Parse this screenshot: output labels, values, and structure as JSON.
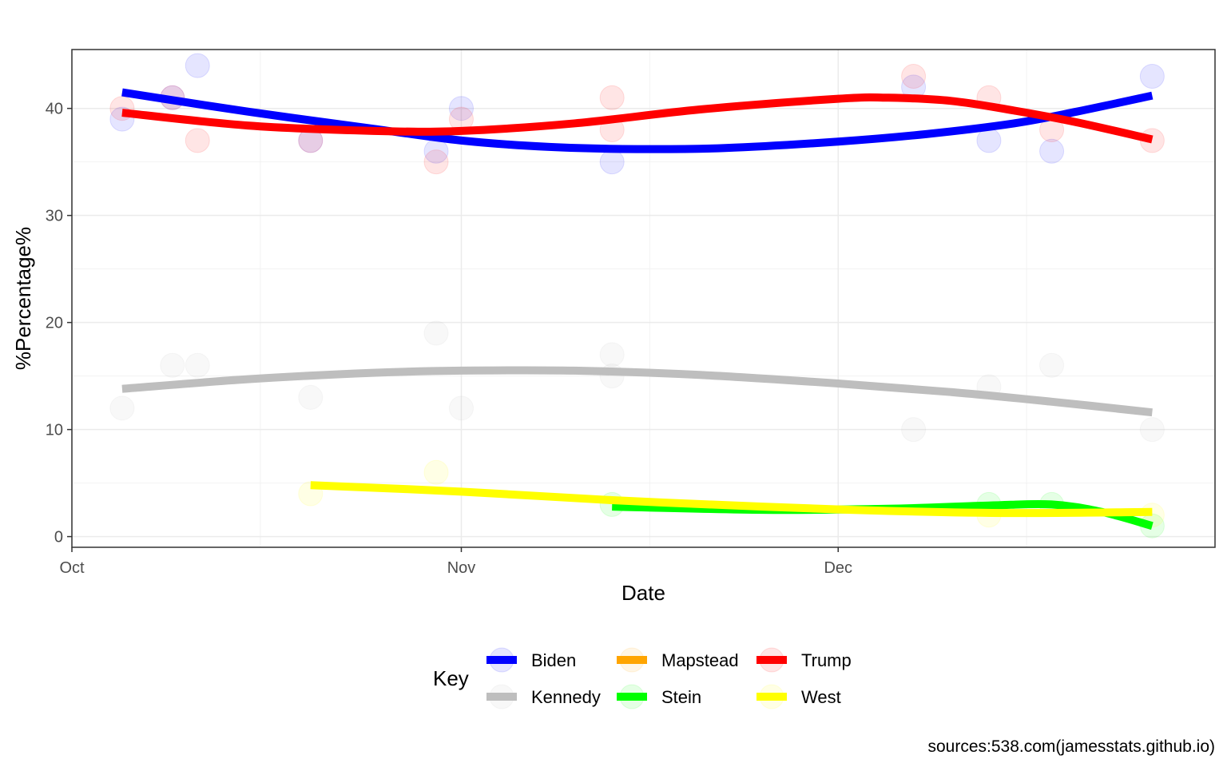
{
  "chart_data": {
    "type": "scatter",
    "title": "",
    "xlabel": "Date",
    "ylabel": "%Percentage%",
    "caption": "sources:538.com(jamesstats.github.io)",
    "x_axis": {
      "type": "date",
      "range": [
        "2023-10-01",
        "2023-12-31"
      ],
      "ticks": [
        "Oct",
        "Nov",
        "Dec"
      ],
      "tick_dates": [
        "2023-10-01",
        "2023-11-01",
        "2023-12-01"
      ]
    },
    "ylim": [
      -1,
      45.5
    ],
    "yticks": [
      0,
      10,
      20,
      30,
      40
    ],
    "grid": true,
    "legend": {
      "title": "Key",
      "position": "bottom",
      "entries": [
        "Biden",
        "Kennedy",
        "Mapstead",
        "Stein",
        "Trump",
        "West"
      ]
    },
    "series": [
      {
        "name": "Biden",
        "color": "#0000ff",
        "points": [
          [
            "2023-10-05",
            39
          ],
          [
            "2023-10-09",
            41
          ],
          [
            "2023-10-11",
            44
          ],
          [
            "2023-10-20",
            37
          ],
          [
            "2023-10-30",
            36
          ],
          [
            "2023-11-01",
            40
          ],
          [
            "2023-11-13",
            35
          ],
          [
            "2023-12-07",
            42
          ],
          [
            "2023-12-13",
            37
          ],
          [
            "2023-12-18",
            36
          ],
          [
            "2023-12-26",
            43
          ]
        ],
        "trend": [
          [
            "2023-10-05",
            41.5
          ],
          [
            "2023-10-15",
            39.7
          ],
          [
            "2023-10-25",
            38.1
          ],
          [
            "2023-11-01",
            37.0
          ],
          [
            "2023-11-08",
            36.4
          ],
          [
            "2023-11-15",
            36.2
          ],
          [
            "2023-11-22",
            36.3
          ],
          [
            "2023-12-01",
            36.9
          ],
          [
            "2023-12-08",
            37.6
          ],
          [
            "2023-12-15",
            38.6
          ],
          [
            "2023-12-20",
            39.7
          ],
          [
            "2023-12-26",
            41.2
          ]
        ]
      },
      {
        "name": "Kennedy",
        "color": "#bebebe",
        "points": [
          [
            "2023-10-05",
            12
          ],
          [
            "2023-10-09",
            16
          ],
          [
            "2023-10-11",
            16
          ],
          [
            "2023-10-20",
            13
          ],
          [
            "2023-10-30",
            19
          ],
          [
            "2023-11-01",
            12
          ],
          [
            "2023-11-13",
            17
          ],
          [
            "2023-11-13",
            15
          ],
          [
            "2023-12-07",
            10
          ],
          [
            "2023-12-13",
            14
          ],
          [
            "2023-12-18",
            16
          ],
          [
            "2023-12-26",
            10
          ]
        ],
        "trend": [
          [
            "2023-10-05",
            13.8
          ],
          [
            "2023-10-15",
            14.7
          ],
          [
            "2023-10-25",
            15.3
          ],
          [
            "2023-11-01",
            15.5
          ],
          [
            "2023-11-10",
            15.5
          ],
          [
            "2023-11-20",
            15.1
          ],
          [
            "2023-12-01",
            14.3
          ],
          [
            "2023-12-10",
            13.5
          ],
          [
            "2023-12-18",
            12.6
          ],
          [
            "2023-12-26",
            11.6
          ]
        ]
      },
      {
        "name": "Mapstead",
        "color": "#ffa500",
        "points": [],
        "trend": []
      },
      {
        "name": "Stein",
        "color": "#00ff00",
        "points": [
          [
            "2023-11-13",
            3
          ],
          [
            "2023-12-13",
            3
          ],
          [
            "2023-12-18",
            3
          ],
          [
            "2023-12-26",
            1
          ]
        ],
        "trend": [
          [
            "2023-11-13",
            2.8
          ],
          [
            "2023-11-25",
            2.5
          ],
          [
            "2023-12-05",
            2.6
          ],
          [
            "2023-12-13",
            2.9
          ],
          [
            "2023-12-18",
            3.0
          ],
          [
            "2023-12-22",
            2.3
          ],
          [
            "2023-12-26",
            1.0
          ]
        ]
      },
      {
        "name": "Trump",
        "color": "#ff0000",
        "points": [
          [
            "2023-10-05",
            40
          ],
          [
            "2023-10-09",
            41
          ],
          [
            "2023-10-11",
            37
          ],
          [
            "2023-10-20",
            37
          ],
          [
            "2023-10-30",
            35
          ],
          [
            "2023-11-01",
            39
          ],
          [
            "2023-11-13",
            41
          ],
          [
            "2023-11-13",
            38
          ],
          [
            "2023-12-07",
            43
          ],
          [
            "2023-12-13",
            41
          ],
          [
            "2023-12-18",
            38
          ],
          [
            "2023-12-26",
            37
          ]
        ],
        "trend": [
          [
            "2023-10-05",
            39.6
          ],
          [
            "2023-10-15",
            38.4
          ],
          [
            "2023-10-25",
            37.9
          ],
          [
            "2023-11-01",
            37.9
          ],
          [
            "2023-11-10",
            38.6
          ],
          [
            "2023-11-20",
            39.9
          ],
          [
            "2023-12-01",
            40.9
          ],
          [
            "2023-12-05",
            41.0
          ],
          [
            "2023-12-10",
            40.7
          ],
          [
            "2023-12-15",
            39.8
          ],
          [
            "2023-12-20",
            38.7
          ],
          [
            "2023-12-26",
            37.1
          ]
        ]
      },
      {
        "name": "West",
        "color": "#ffff00",
        "points": [
          [
            "2023-10-20",
            4
          ],
          [
            "2023-10-30",
            6
          ],
          [
            "2023-12-13",
            2
          ],
          [
            "2023-12-26",
            2
          ]
        ],
        "trend": [
          [
            "2023-10-20",
            4.8
          ],
          [
            "2023-11-01",
            4.2
          ],
          [
            "2023-11-13",
            3.4
          ],
          [
            "2023-11-25",
            2.8
          ],
          [
            "2023-12-05",
            2.4
          ],
          [
            "2023-12-15",
            2.2
          ],
          [
            "2023-12-26",
            2.3
          ]
        ]
      }
    ]
  }
}
